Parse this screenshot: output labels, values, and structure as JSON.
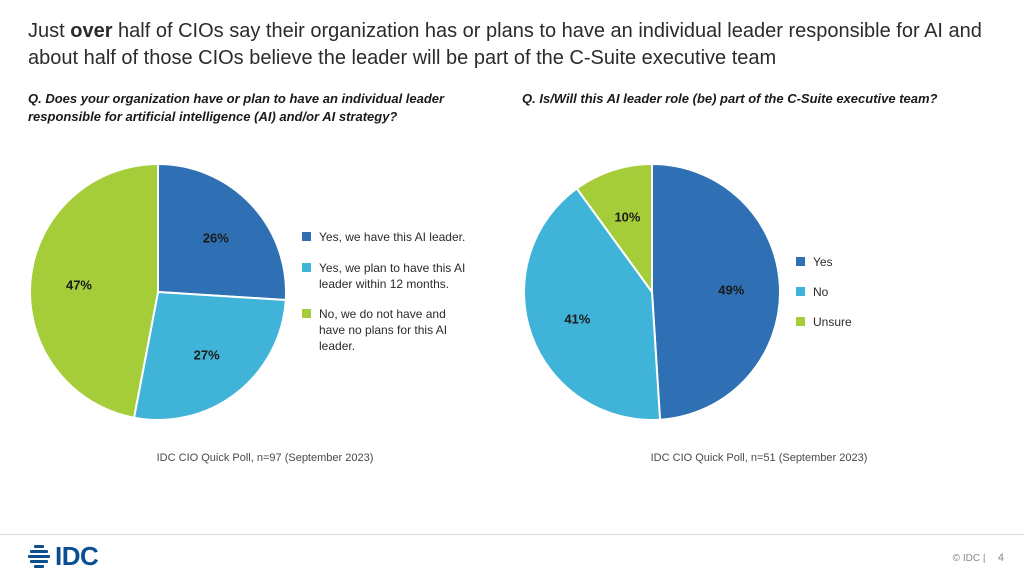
{
  "title": {
    "pre": "Just ",
    "bold": "over",
    "post": " half of CIOs say their organization has or plans to have an individual leader responsible for AI and about half of those CIOs believe the leader will be part of the C-Suite executive team"
  },
  "chart1": {
    "type": "pie",
    "question": "Q.   Does your organization have or plan to have an individual  leader responsible for artificial intelligence (AI) and/or AI strategy?",
    "slices": [
      {
        "label": "Yes, we have this AI leader.",
        "value": 26,
        "display": "26%",
        "color": "#2f6fb3"
      },
      {
        "label": "Yes, we plan to have this AI leader within 12 months.",
        "value": 27,
        "display": "27%",
        "color": "#3fb4d8"
      },
      {
        "label": "No, we do not have and have no plans for this AI leader.",
        "value": 47,
        "display": "47%",
        "color": "#a4cd39"
      }
    ],
    "source": "IDC CIO Quick Poll, n=97  (September 2023)",
    "stroke": "#ffffff",
    "stroke_width": 2,
    "label_fontsize": 13,
    "legend_fontsize": 12
  },
  "chart2": {
    "type": "pie",
    "question": "Q. Is/Will this AI leader role (be) part of the C-Suite executive team?",
    "slices": [
      {
        "label": "Yes",
        "value": 49,
        "display": "49%",
        "color": "#2f6fb3"
      },
      {
        "label": "No",
        "value": 41,
        "display": "41%",
        "color": "#3fb4d8"
      },
      {
        "label": "Unsure",
        "value": 10,
        "display": "10%",
        "color": "#a4cd39"
      }
    ],
    "source": "IDC CIO Quick Poll, n=51  (September 2023)",
    "stroke": "#ffffff",
    "stroke_width": 2,
    "label_fontsize": 13,
    "legend_fontsize": 12
  },
  "footer": {
    "logo_text": "IDC",
    "logo_color": "#0a4f8f",
    "copyright": "© IDC |",
    "page": "4"
  },
  "background_color": "#ffffff"
}
